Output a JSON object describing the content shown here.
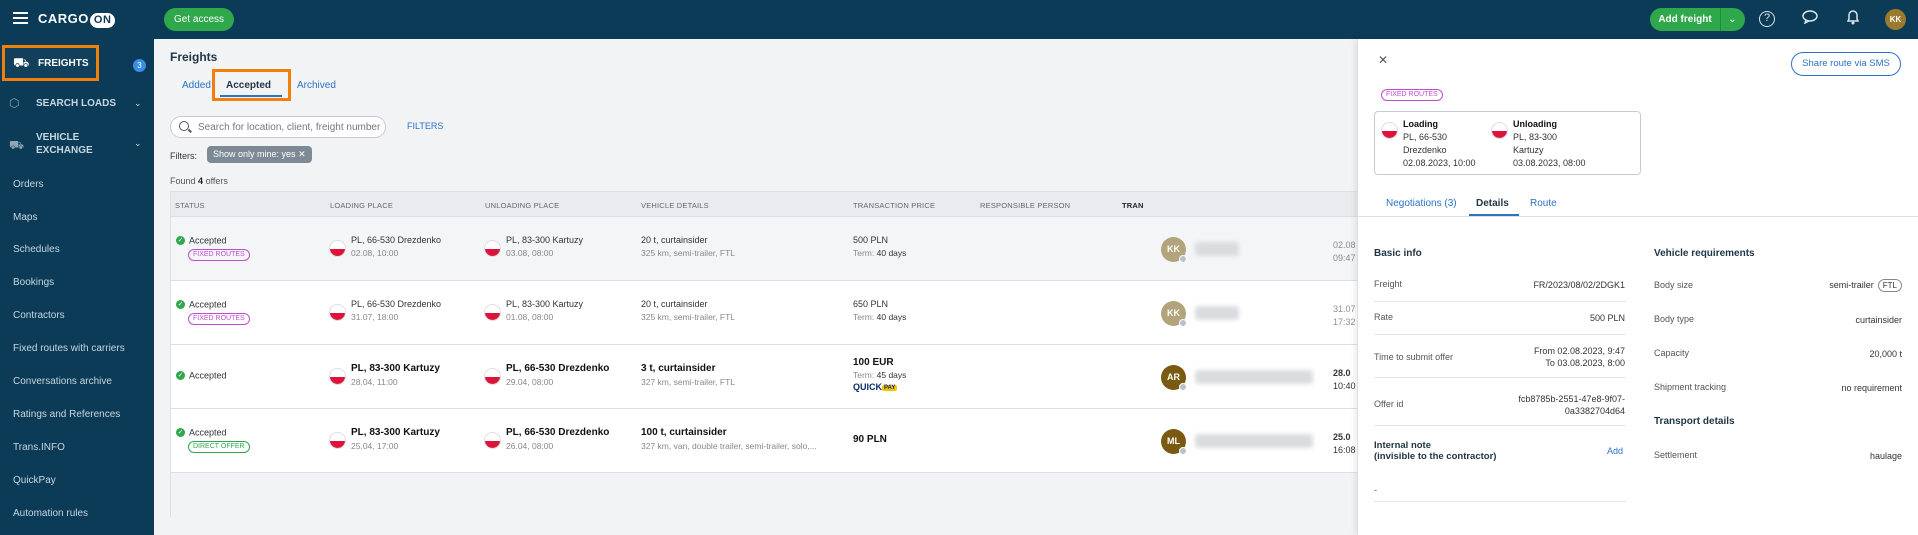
{
  "app": {
    "logo_text": "CARGO",
    "logo_on": "ON",
    "get_access": "Get access",
    "add_freight": "Add freight",
    "avatar": "KK"
  },
  "sidebar": {
    "freights": "FREIGHTS",
    "freights_count": "3",
    "search_loads": "SEARCH LOADS",
    "vehicle_exchange_1": "VEHICLE",
    "vehicle_exchange_2": "EXCHANGE",
    "items": [
      "Orders",
      "Maps",
      "Schedules",
      "Bookings",
      "Contractors",
      "Fixed routes with carriers",
      "Conversations archive",
      "Ratings and References",
      "Trans.INFO",
      "QuickPay",
      "Automation rules"
    ]
  },
  "main": {
    "title": "Freights",
    "tabs": {
      "added": "Added",
      "accepted": "Accepted",
      "archived": "Archived"
    },
    "search_placeholder": "Search for location, client, freight number",
    "filters_link": "FILTERS",
    "filters_label": "Filters:",
    "filter_chip": "Show only mine: yes",
    "found_prefix": "Found",
    "found_count": "4",
    "found_suffix": "offers",
    "columns": [
      "STATUS",
      "LOADING PLACE",
      "UNLOADING PLACE",
      "VEHICLE DETAILS",
      "TRANSACTION PRICE",
      "RESPONSIBLE PERSON",
      "TRAN"
    ],
    "rows": [
      {
        "status": "Accepted",
        "tag": "FIXED ROUTES",
        "loading": "PL, 66-530 Drezdenko",
        "loading_date": "02.08, 10:00",
        "unloading": "PL, 83-300 Kartuzy",
        "unloading_date": "03.08, 08:00",
        "vehicle": "20 t, curtainsider",
        "vehicle_sub": "325 km, semi-trailer, FTL",
        "price": "500 PLN",
        "term_label": "Term:",
        "term": "40 days",
        "avatar": "KK",
        "avatar_color": "#b3a47c",
        "tran1": "02.08",
        "tran2": "09:47"
      },
      {
        "status": "Accepted",
        "tag": "FIXED ROUTES",
        "loading": "PL, 66-530 Drezdenko",
        "loading_date": "31.07, 18:00",
        "unloading": "PL, 83-300 Kartuzy",
        "unloading_date": "01.08, 08:00",
        "vehicle": "20 t, curtainsider",
        "vehicle_sub": "325 km, semi-trailer, FTL",
        "price": "650 PLN",
        "term_label": "Term:",
        "term": "40 days",
        "avatar": "KK",
        "avatar_color": "#b3a47c",
        "tran1": "31.07",
        "tran2": "17:32"
      },
      {
        "status": "Accepted",
        "loading": "PL, 83-300 Kartuzy",
        "loading_date": "28.04, 11:00",
        "unloading": "PL, 66-530 Drezdenko",
        "unloading_date": "29.04, 08:00",
        "vehicle": "3 t, curtainsider",
        "vehicle_sub": "327 km, semi-trailer, FTL",
        "price": "100 EUR",
        "term_label": "Term:",
        "term": "45 days",
        "quick": "QUICK",
        "quick_pay": "PAY",
        "avatar": "AR",
        "avatar_color": "#7a5a10",
        "tran1": "28.0",
        "tran2": "10:40"
      },
      {
        "status": "Accepted",
        "tag": "DIRECT OFFER",
        "loading": "PL, 83-300 Kartuzy",
        "loading_date": "25.04, 17:00",
        "unloading": "PL, 66-530 Drezdenko",
        "unloading_date": "26.04, 08:00",
        "vehicle": "100 t, curtainsider",
        "vehicle_sub": "327 km, van, double trailer, semi-trailer, solo,...",
        "price": "90 PLN",
        "avatar": "ML",
        "avatar_color": "#7a5a10",
        "tran1": "25.0",
        "tran2": "16:08"
      }
    ]
  },
  "panel": {
    "share": "Share route via SMS",
    "tag": "FIXED ROUTES",
    "loading_h": "Loading",
    "loading_1": "PL, 66-530",
    "loading_2": "Drezdenko",
    "loading_3": "02.08.2023, 10:00",
    "unloading_h": "Unloading",
    "unloading_1": "PL, 83-300",
    "unloading_2": "Kartuzy",
    "unloading_3": "03.08.2023, 08:00",
    "tabs": {
      "negotiations": "Negotiations (3)",
      "details": "Details",
      "route": "Route"
    },
    "basic_info": "Basic info",
    "freight_l": "Freight",
    "freight_v": "FR/2023/08/02/2DGK1",
    "rate_l": "Rate",
    "rate_v": "500 PLN",
    "time_l": "Time to submit offer",
    "time_v1": "From 02.08.2023, 9:47",
    "time_v2": "To 03.08.2023, 8:00",
    "offer_l": "Offer id",
    "offer_v1": "fcb8785b-2551-47e8-9f07-",
    "offer_v2": "0a3382704d64",
    "note_h1": "Internal note",
    "note_h2": "(invisible to the contractor)",
    "note_add": "Add",
    "note_v": "-",
    "veh_req": "Vehicle requirements",
    "body_size_l": "Body size",
    "body_size_v": "semi-trailer",
    "body_size_tag": "FTL",
    "body_type_l": "Body type",
    "body_type_v": "curtainsider",
    "capacity_l": "Capacity",
    "capacity_v": "20,000 t",
    "tracking_l": "Shipment tracking",
    "tracking_v": "no requirement",
    "transport": "Transport details",
    "settlement_l": "Settlement",
    "settlement_v": "haulage"
  }
}
